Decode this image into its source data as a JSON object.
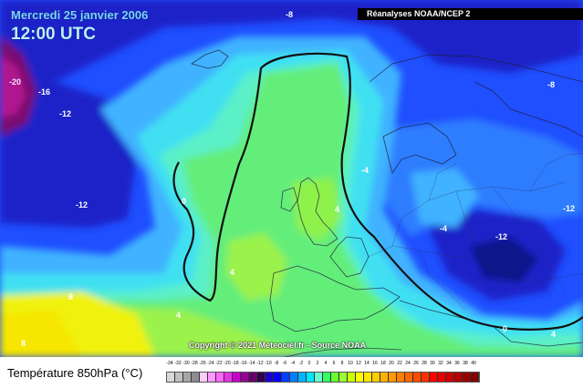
{
  "header": {
    "date": "Mercredi 25 janvier 2006",
    "time": "12:00 UTC",
    "source": "Réanalyses NOAA/NCEP 2"
  },
  "copyright": "Copyright © 2021 Meteociel.fr - Source NOAA",
  "map_labels": [
    "-8",
    "-20",
    "-16",
    "-12",
    "-8",
    "-4",
    "-12",
    "-12",
    "0",
    "4",
    "-4",
    "-12",
    "4",
    "8",
    "4",
    "8",
    "0",
    "4"
  ],
  "legend": {
    "title": "Température 850hPa (°C)",
    "ticks": [
      "-34",
      "-32",
      "-30",
      "-28",
      "-26",
      "-24",
      "-22",
      "-20",
      "-18",
      "-16",
      "-14",
      "-12",
      "-10",
      "-8",
      "-6",
      "-4",
      "-2",
      "0",
      "2",
      "4",
      "6",
      "8",
      "10",
      "12",
      "14",
      "16",
      "18",
      "20",
      "22",
      "24",
      "26",
      "28",
      "30",
      "32",
      "34",
      "36",
      "38",
      "40"
    ],
    "colors": [
      "#d9d9d9",
      "#bfbfbf",
      "#a6a6a6",
      "#8c8c8c",
      "#ffccff",
      "#ff99ff",
      "#ff66ff",
      "#e633e6",
      "#cc00cc",
      "#990099",
      "#66006b",
      "#33004d",
      "#1a00cc",
      "#0000ff",
      "#0040ff",
      "#0080ff",
      "#00b3ff",
      "#00e6ff",
      "#66ffcc",
      "#33ff66",
      "#66ff33",
      "#99ff33",
      "#ccff00",
      "#ffff00",
      "#ffe600",
      "#ffcc00",
      "#ffb300",
      "#ff9900",
      "#ff8000",
      "#ff6600",
      "#ff4d00",
      "#ff3300",
      "#ff0000",
      "#e60000",
      "#cc0000",
      "#b30000",
      "#990000",
      "#800000"
    ]
  },
  "colors": {
    "deep_magenta": "#7a0a6e",
    "dark_blue": "#1a22c8",
    "blue": "#1f4fff",
    "mid_blue": "#2f7dff",
    "light_blue": "#3fb2ff",
    "cyan": "#3fe0f2",
    "aqua": "#5cf0c8",
    "green": "#63ee7a",
    "lime": "#9bf24c",
    "yellow": "#f0f20a"
  }
}
